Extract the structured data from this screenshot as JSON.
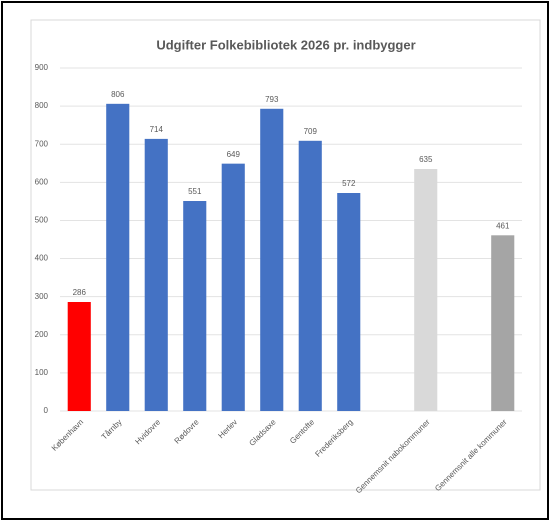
{
  "chart_data": {
    "type": "bar",
    "title": "Udgifter Folkebibliotek 2026 pr. indbygger",
    "categories": [
      "København",
      "Tårnby",
      "Hvidovre",
      "Rødovre",
      "Herlev",
      "Gladsaxe",
      "Gentofte",
      "Frederiksberg",
      null,
      "Gennemsnit nabokommuner",
      null,
      "Gennemsnit alle kommuner"
    ],
    "values": [
      286,
      806,
      714,
      551,
      649,
      793,
      709,
      572,
      null,
      635,
      null,
      461
    ],
    "colors": [
      "#ff0000",
      "#4472c4",
      "#4472c4",
      "#4472c4",
      "#4472c4",
      "#4472c4",
      "#4472c4",
      "#4472c4",
      null,
      "#d9d9d9",
      null,
      "#a5a5a5"
    ],
    "ylim": [
      0,
      900
    ],
    "yticks": [
      0,
      100,
      200,
      300,
      400,
      500,
      600,
      700,
      800,
      900
    ],
    "grid": true
  }
}
